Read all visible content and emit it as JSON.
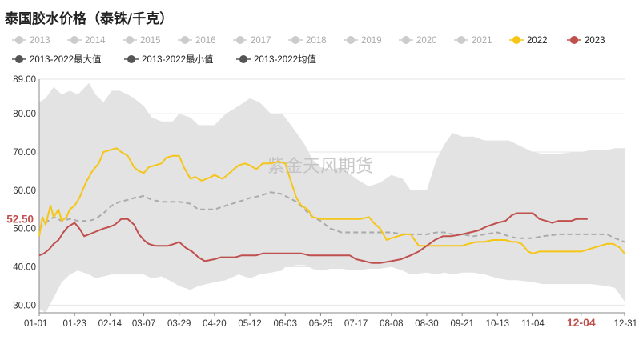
{
  "title": "泰国胶水价格（泰铢/千克）",
  "watermark": "紫金天风期货",
  "chart_data": {
    "type": "line",
    "title": "泰国胶水价格（泰铢/千克）",
    "xlabel": "",
    "ylabel": "",
    "ylim": [
      28.0,
      89.0
    ],
    "yticks": [
      "89.00",
      "80.00",
      "70.00",
      "60.00",
      "50.00",
      "40.00",
      "30.00"
    ],
    "ytick_values": [
      89,
      80,
      70,
      60,
      50,
      40,
      30
    ],
    "xticks": [
      "01-01",
      "01-23",
      "02-14",
      "03-07",
      "03-29",
      "04-20",
      "05-12",
      "06-03",
      "06-25",
      "07-17",
      "08-08",
      "08-30",
      "09-21",
      "10-13",
      "11-04",
      "12-04",
      "12-31"
    ],
    "highlight_tick": "12-04",
    "last_value_label": "52.50",
    "last_value": 52.5,
    "grid": true,
    "legend_position": "top",
    "legend_rows": [
      [
        {
          "name": "2013",
          "color": "#cccccc",
          "style": "gray"
        },
        {
          "name": "2014",
          "color": "#cccccc",
          "style": "gray"
        },
        {
          "name": "2015",
          "color": "#cccccc",
          "style": "gray"
        },
        {
          "name": "2016",
          "color": "#cccccc",
          "style": "gray"
        },
        {
          "name": "2017",
          "color": "#cccccc",
          "style": "gray"
        },
        {
          "name": "2018",
          "color": "#cccccc",
          "style": "gray"
        },
        {
          "name": "2019",
          "color": "#cccccc",
          "style": "gray"
        },
        {
          "name": "2020",
          "color": "#cccccc",
          "style": "gray"
        },
        {
          "name": "2021",
          "color": "#cccccc",
          "style": "gray"
        },
        {
          "name": "2022",
          "color": "#f5c518",
          "style": "active"
        },
        {
          "name": "2023",
          "color": "#c0504d",
          "style": "active"
        }
      ],
      [
        {
          "name": "2013-2022最大值",
          "color": "#555555",
          "style": "dark"
        },
        {
          "name": "2013-2022最小值",
          "color": "#555555",
          "style": "dark"
        },
        {
          "name": "2013-2022均值",
          "color": "#555555",
          "style": "dark"
        }
      ]
    ],
    "colors": {
      "range_band": "#e3e3e3",
      "s2022": "#f5c518",
      "s2023": "#c0504d",
      "mean": "#aaaaaa",
      "highlight": "#c0504d"
    },
    "series": [
      {
        "name": "2013-2022最大值",
        "x": [
          "01-01",
          "01-05",
          "01-10",
          "01-15",
          "01-20",
          "01-25",
          "02-01",
          "02-05",
          "02-10",
          "02-15",
          "02-20",
          "02-25",
          "03-01",
          "03-07",
          "03-12",
          "03-18",
          "03-25",
          "03-29",
          "04-05",
          "04-10",
          "04-20",
          "04-27",
          "05-05",
          "05-12",
          "05-18",
          "05-25",
          "06-01",
          "06-03",
          "06-10",
          "06-15",
          "06-20",
          "06-25",
          "07-01",
          "07-08",
          "07-17",
          "07-25",
          "08-01",
          "08-08",
          "08-15",
          "08-20",
          "08-30",
          "09-05",
          "09-10",
          "09-15",
          "09-21",
          "09-28",
          "10-05",
          "10-13",
          "10-20",
          "10-25",
          "11-04",
          "11-10",
          "11-20",
          "11-30",
          "12-04",
          "12-10",
          "12-20",
          "12-25",
          "12-31"
        ],
        "values": [
          83.0,
          84.0,
          87.0,
          85.0,
          86.0,
          85.0,
          88.0,
          85.0,
          83.0,
          86.0,
          86.0,
          85.0,
          84.0,
          82.0,
          79.0,
          78.0,
          78.0,
          80.0,
          79.0,
          77.0,
          77.0,
          80.0,
          82.0,
          84.0,
          83.0,
          80.0,
          80.0,
          79.0,
          75.0,
          72.0,
          68.0,
          66.0,
          65.5,
          66.0,
          63.0,
          61.0,
          62.0,
          64.0,
          63.0,
          60.0,
          60.0,
          68.0,
          72.0,
          75.0,
          74.0,
          74.0,
          73.0,
          73.0,
          73.0,
          72.0,
          70.0,
          69.5,
          69.5,
          70.0,
          70.0,
          70.5,
          70.5,
          71.0,
          71.0
        ]
      },
      {
        "name": "2013-2022最小值",
        "x": [
          "01-01",
          "01-05",
          "01-10",
          "01-15",
          "01-20",
          "01-25",
          "02-01",
          "02-05",
          "02-10",
          "02-15",
          "02-20",
          "02-25",
          "03-01",
          "03-07",
          "03-12",
          "03-18",
          "03-25",
          "03-29",
          "04-05",
          "04-10",
          "04-20",
          "04-27",
          "05-05",
          "05-12",
          "05-18",
          "05-25",
          "06-01",
          "06-03",
          "06-10",
          "06-15",
          "06-20",
          "06-25",
          "07-01",
          "07-08",
          "07-17",
          "07-25",
          "08-01",
          "08-08",
          "08-15",
          "08-20",
          "08-30",
          "09-05",
          "09-10",
          "09-15",
          "09-21",
          "09-28",
          "10-05",
          "10-13",
          "10-20",
          "10-25",
          "11-04",
          "11-10",
          "11-20",
          "11-30",
          "12-04",
          "12-10",
          "12-20",
          "12-25",
          "12-31"
        ],
        "values": [
          29.0,
          28.0,
          32.0,
          36.0,
          38.0,
          39.0,
          38.0,
          37.0,
          37.5,
          38.0,
          38.0,
          38.0,
          38.0,
          38.0,
          37.0,
          37.5,
          36.0,
          35.0,
          34.0,
          35.0,
          36.0,
          36.5,
          38.0,
          37.0,
          38.0,
          38.5,
          39.0,
          40.0,
          40.5,
          40.5,
          39.5,
          39.0,
          39.5,
          39.5,
          39.0,
          39.5,
          39.5,
          40.0,
          39.0,
          38.0,
          38.5,
          38.0,
          38.5,
          38.0,
          38.5,
          38.5,
          38.0,
          37.0,
          36.5,
          36.5,
          36.0,
          35.5,
          35.5,
          35.5,
          35.5,
          35.5,
          35.0,
          34.5,
          31.0
        ]
      },
      {
        "name": "2013-2022均值",
        "x": [
          "01-01",
          "01-05",
          "01-10",
          "01-15",
          "01-20",
          "01-25",
          "02-01",
          "02-05",
          "02-10",
          "02-15",
          "02-20",
          "02-25",
          "03-01",
          "03-07",
          "03-12",
          "03-18",
          "03-25",
          "03-29",
          "04-05",
          "04-10",
          "04-20",
          "04-27",
          "05-05",
          "05-12",
          "05-18",
          "05-25",
          "06-01",
          "06-03",
          "06-10",
          "06-15",
          "06-20",
          "06-25",
          "07-01",
          "07-08",
          "07-17",
          "07-25",
          "08-01",
          "08-08",
          "08-15",
          "08-20",
          "08-30",
          "09-05",
          "09-10",
          "09-15",
          "09-21",
          "09-28",
          "10-05",
          "10-13",
          "10-20",
          "10-25",
          "11-04",
          "11-10",
          "11-20",
          "11-30",
          "12-04",
          "12-10",
          "12-20",
          "12-25",
          "12-31"
        ],
        "values": [
          50.0,
          51.5,
          53.0,
          52.0,
          52.5,
          52.0,
          52.0,
          52.5,
          54.0,
          56.0,
          57.0,
          57.5,
          58.0,
          58.5,
          57.5,
          57.0,
          57.0,
          57.0,
          56.5,
          55.0,
          55.0,
          56.0,
          57.0,
          58.0,
          58.5,
          59.5,
          59.0,
          58.5,
          57.0,
          55.0,
          53.0,
          52.0,
          50.0,
          49.0,
          49.0,
          49.0,
          49.0,
          49.0,
          48.5,
          48.5,
          48.5,
          49.0,
          49.0,
          48.5,
          48.5,
          48.0,
          48.5,
          49.0,
          48.0,
          47.5,
          47.5,
          48.0,
          48.5,
          48.5,
          48.5,
          48.5,
          48.5,
          47.5,
          46.5
        ]
      },
      {
        "name": "2022",
        "x": [
          "01-01",
          "01-03",
          "01-05",
          "01-08",
          "01-10",
          "01-13",
          "01-15",
          "01-18",
          "01-20",
          "01-23",
          "01-26",
          "01-30",
          "02-03",
          "02-07",
          "02-10",
          "02-14",
          "02-18",
          "02-21",
          "02-25",
          "03-01",
          "03-04",
          "03-07",
          "03-10",
          "03-14",
          "03-18",
          "03-21",
          "03-25",
          "03-29",
          "04-01",
          "04-05",
          "04-08",
          "04-12",
          "04-15",
          "04-18",
          "04-20",
          "04-25",
          "04-28",
          "05-02",
          "05-05",
          "05-09",
          "05-12",
          "05-16",
          "05-20",
          "05-25",
          "05-30",
          "06-03",
          "06-06",
          "06-10",
          "06-13",
          "06-17",
          "06-20",
          "06-25",
          "06-30",
          "07-05",
          "07-10",
          "07-15",
          "07-20",
          "07-25",
          "07-28",
          "08-01",
          "08-05",
          "08-08",
          "08-12",
          "08-16",
          "08-20",
          "08-25",
          "08-30",
          "09-05",
          "09-10",
          "09-15",
          "09-21",
          "09-25",
          "09-30",
          "10-05",
          "10-10",
          "10-13",
          "10-18",
          "10-22",
          "10-25",
          "10-28",
          "11-01",
          "11-04",
          "11-08",
          "11-12",
          "11-18",
          "11-24",
          "11-30",
          "12-04",
          "12-08",
          "12-12",
          "12-16",
          "12-20",
          "12-24",
          "12-28",
          "12-31"
        ],
        "values": [
          48.0,
          53.0,
          51.0,
          56.0,
          53.0,
          55.0,
          52.0,
          53.0,
          55.0,
          56.0,
          58.0,
          62.0,
          65.0,
          67.0,
          70.0,
          70.5,
          71.0,
          70.0,
          69.0,
          66.0,
          65.0,
          64.5,
          66.0,
          66.5,
          67.0,
          68.5,
          69.0,
          69.0,
          66.0,
          63.0,
          63.5,
          62.5,
          63.0,
          63.5,
          64.0,
          63.0,
          64.0,
          65.5,
          66.5,
          67.0,
          66.5,
          65.5,
          67.0,
          67.0,
          67.5,
          67.0,
          63.0,
          58.0,
          56.0,
          55.0,
          53.0,
          52.5,
          52.5,
          52.5,
          52.5,
          52.5,
          52.5,
          53.0,
          51.5,
          50.0,
          47.0,
          47.5,
          48.0,
          48.5,
          48.5,
          45.5,
          45.5,
          45.5,
          45.5,
          45.5,
          45.5,
          46.0,
          46.5,
          46.5,
          47.0,
          47.0,
          47.0,
          46.5,
          46.5,
          46.0,
          44.0,
          43.5,
          44.0,
          44.0,
          44.0,
          44.0,
          44.0,
          44.0,
          44.5,
          45.0,
          45.5,
          46.0,
          46.0,
          45.0,
          43.5
        ]
      },
      {
        "name": "2023",
        "x": [
          "01-01",
          "01-04",
          "01-07",
          "01-10",
          "01-13",
          "01-16",
          "01-19",
          "01-23",
          "01-26",
          "01-29",
          "02-01",
          "02-04",
          "02-07",
          "02-10",
          "02-14",
          "02-17",
          "02-21",
          "02-25",
          "03-01",
          "03-04",
          "03-07",
          "03-10",
          "03-14",
          "03-18",
          "03-22",
          "03-26",
          "03-29",
          "04-02",
          "04-06",
          "04-10",
          "04-14",
          "04-20",
          "04-24",
          "04-28",
          "05-03",
          "05-07",
          "05-12",
          "05-16",
          "05-20",
          "05-25",
          "05-30",
          "06-03",
          "06-08",
          "06-13",
          "06-18",
          "06-23",
          "06-28",
          "07-03",
          "07-08",
          "07-13",
          "07-17",
          "07-22",
          "07-27",
          "08-01",
          "08-08",
          "08-14",
          "08-20",
          "08-25",
          "08-30",
          "09-04",
          "09-09",
          "09-14",
          "09-21",
          "09-26",
          "10-01",
          "10-06",
          "10-13",
          "10-18",
          "10-22",
          "10-25",
          "10-28",
          "11-01",
          "11-04",
          "11-08",
          "11-12",
          "11-16",
          "11-20",
          "11-24",
          "11-28",
          "12-01",
          "12-04",
          "12-08"
        ],
        "values": [
          43.0,
          43.5,
          44.5,
          46.0,
          47.0,
          49.0,
          50.5,
          51.5,
          50.0,
          48.0,
          48.5,
          49.0,
          49.5,
          50.0,
          50.5,
          51.0,
          52.5,
          52.5,
          51.0,
          48.5,
          47.0,
          46.0,
          45.5,
          45.5,
          45.5,
          46.0,
          46.5,
          45.0,
          44.0,
          42.5,
          41.5,
          42.0,
          42.5,
          42.5,
          42.5,
          43.0,
          43.0,
          43.0,
          43.5,
          43.5,
          43.5,
          43.5,
          43.5,
          43.5,
          43.0,
          43.0,
          43.0,
          43.0,
          43.0,
          43.0,
          42.0,
          41.5,
          41.0,
          41.0,
          41.5,
          42.0,
          43.0,
          44.0,
          45.5,
          47.0,
          48.0,
          48.0,
          48.5,
          49.0,
          49.5,
          50.5,
          51.5,
          52.0,
          53.5,
          54.0,
          54.0,
          54.0,
          54.0,
          52.5,
          52.0,
          51.5,
          52.0,
          52.0,
          52.0,
          52.5,
          52.5,
          52.5
        ]
      }
    ]
  }
}
